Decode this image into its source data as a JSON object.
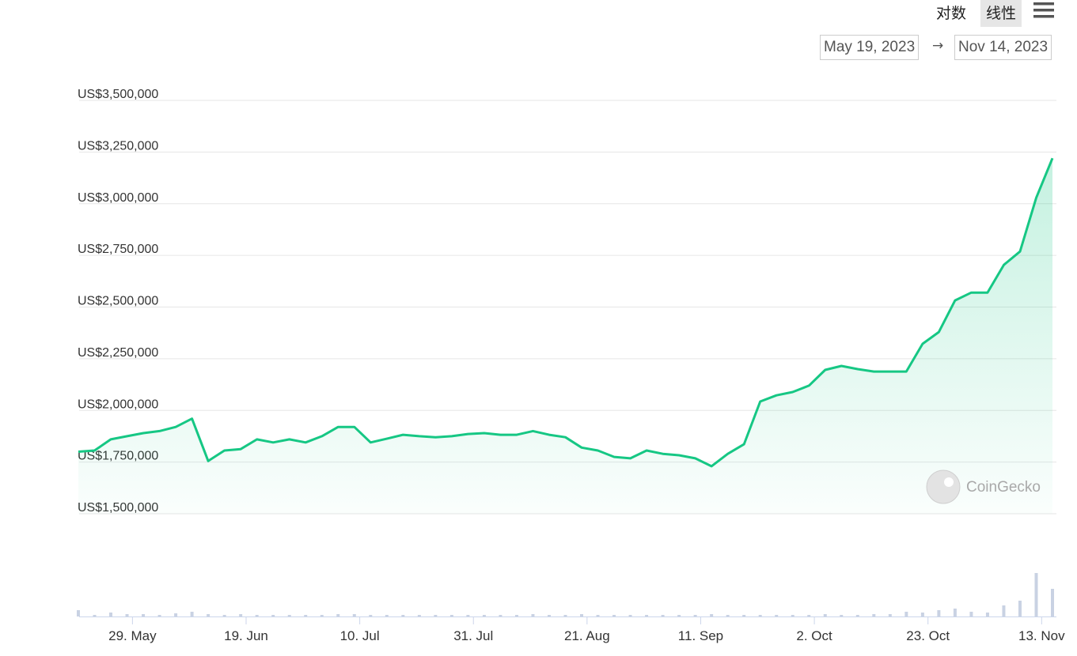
{
  "controls": {
    "scale_buttons": [
      "对数",
      "线性"
    ],
    "selected_scale": 1
  },
  "range": {
    "from": "May 19, 2023",
    "separator": "→",
    "to": "Nov 14, 2023"
  },
  "watermark": "CoinGecko",
  "chart_data": {
    "type": "line",
    "log_scale": false,
    "grid": true,
    "color": "#16c784",
    "volume_color": "#c9d2e3",
    "x": [
      "2023-05-19",
      "2023-05-22",
      "2023-05-25",
      "2023-05-28",
      "2023-05-31",
      "2023-06-03",
      "2023-06-06",
      "2023-06-09",
      "2023-06-12",
      "2023-06-15",
      "2023-06-18",
      "2023-06-21",
      "2023-06-24",
      "2023-06-27",
      "2023-06-30",
      "2023-07-03",
      "2023-07-06",
      "2023-07-09",
      "2023-07-12",
      "2023-07-15",
      "2023-07-18",
      "2023-07-21",
      "2023-07-24",
      "2023-07-27",
      "2023-07-30",
      "2023-08-02",
      "2023-08-05",
      "2023-08-08",
      "2023-08-11",
      "2023-08-14",
      "2023-08-17",
      "2023-08-20",
      "2023-08-23",
      "2023-08-26",
      "2023-08-29",
      "2023-09-01",
      "2023-09-04",
      "2023-09-07",
      "2023-09-10",
      "2023-09-13",
      "2023-09-16",
      "2023-09-19",
      "2023-09-22",
      "2023-09-25",
      "2023-09-28",
      "2023-10-01",
      "2023-10-04",
      "2023-10-07",
      "2023-10-10",
      "2023-10-13",
      "2023-10-16",
      "2023-10-19",
      "2023-10-22",
      "2023-10-25",
      "2023-10-28",
      "2023-10-31",
      "2023-11-03",
      "2023-11-06",
      "2023-11-09",
      "2023-11-12",
      "2023-11-15"
    ],
    "values": [
      1800000,
      1806000,
      1860000,
      1875000,
      1890000,
      1900000,
      1920000,
      1960000,
      1755000,
      1806000,
      1813000,
      1860000,
      1845000,
      1860000,
      1845000,
      1875000,
      1920000,
      1920000,
      1845000,
      1863000,
      1882000,
      1875000,
      1870000,
      1875000,
      1886000,
      1890000,
      1882000,
      1882000,
      1900000,
      1882000,
      1870000,
      1820000,
      1806000,
      1775000,
      1768000,
      1806000,
      1790000,
      1783000,
      1768000,
      1730000,
      1790000,
      1836000,
      2043000,
      2073000,
      2089000,
      2120000,
      2196000,
      2215000,
      2200000,
      2188000,
      2188000,
      2188000,
      2322000,
      2379000,
      2532000,
      2570000,
      2570000,
      2704000,
      2769000,
      3029000,
      3220000
    ],
    "volumes": [
      8,
      2,
      5,
      3,
      3,
      2,
      4,
      6,
      3,
      2,
      3,
      2,
      2,
      2,
      2,
      2,
      3,
      3,
      2,
      2,
      2,
      2,
      2,
      2,
      2,
      2,
      2,
      2,
      3,
      2,
      2,
      3,
      2,
      2,
      2,
      2,
      2,
      2,
      2,
      3,
      2,
      2,
      2,
      2,
      2,
      2,
      3,
      2,
      2,
      3,
      3,
      6,
      5,
      8,
      10,
      6,
      5,
      14,
      20,
      55,
      35
    ],
    "y2lim": [
      0,
      70
    ],
    "xlim": [
      "2023-05-19",
      "2023-11-15"
    ],
    "xticks": [
      {
        "value": "2023-05-29",
        "label": "29. May"
      },
      {
        "value": "2023-06-19",
        "label": "19. Jun"
      },
      {
        "value": "2023-07-10",
        "label": "10. Jul"
      },
      {
        "value": "2023-07-31",
        "label": "31. Jul"
      },
      {
        "value": "2023-08-21",
        "label": "21. Aug"
      },
      {
        "value": "2023-09-11",
        "label": "11. Sep"
      },
      {
        "value": "2023-10-02",
        "label": "2. Oct"
      },
      {
        "value": "2023-10-23",
        "label": "23. Oct"
      },
      {
        "value": "2023-11-13",
        "label": "13. Nov"
      }
    ],
    "ylim": [
      1500000,
      3500000
    ],
    "yticks": [
      {
        "value": 1500000,
        "label": "US$1,500,000"
      },
      {
        "value": 1750000,
        "label": "US$1,750,000"
      },
      {
        "value": 2000000,
        "label": "US$2,000,000"
      },
      {
        "value": 2250000,
        "label": "US$2,250,000"
      },
      {
        "value": 2500000,
        "label": "US$2,500,000"
      },
      {
        "value": 2750000,
        "label": "US$2,750,000"
      },
      {
        "value": 3000000,
        "label": "US$3,000,000"
      },
      {
        "value": 3250000,
        "label": "US$3,250,000"
      },
      {
        "value": 3500000,
        "label": "US$3,500,000"
      }
    ]
  }
}
